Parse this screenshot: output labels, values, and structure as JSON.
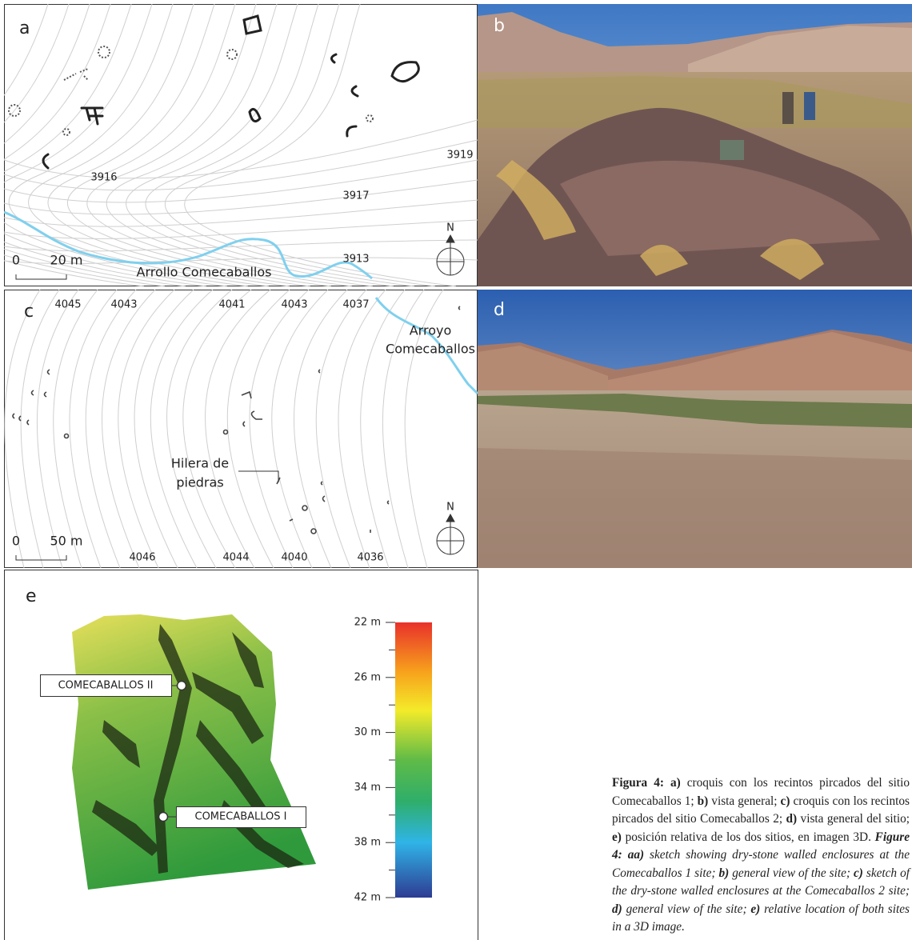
{
  "panels": {
    "a": {
      "label": "a",
      "contours": [
        "3916",
        "3917",
        "3919",
        "3913"
      ],
      "scale": [
        "0",
        "20 m"
      ],
      "river": "Arrollo Comecaballos",
      "north": "N"
    },
    "b": {
      "label": "b"
    },
    "c": {
      "label": "c",
      "contours_top": [
        "4045",
        "4043",
        "4041",
        "4043",
        "4037"
      ],
      "contours_bottom": [
        "4046",
        "4044",
        "4040",
        "4036"
      ],
      "river": [
        "Arroyo",
        "Comecaballos"
      ],
      "feature": [
        "Hilera de",
        "piedras"
      ],
      "scale": [
        "0",
        "50 m"
      ],
      "north": "N"
    },
    "d": {
      "label": "d"
    },
    "e": {
      "label": "e",
      "sites": [
        "COMECABALLOS II",
        "COMECABALLOS I"
      ],
      "colorbar": [
        "22 m",
        "26 m",
        "30 m",
        "34 m",
        "38 m",
        "42 m"
      ]
    }
  },
  "caption": {
    "runs": [
      {
        "text": "Figura 4: a)",
        "style": "bold"
      },
      {
        "text": " croquis con los recintos pircados del sitio Comecaballos 1; ",
        "style": "normal"
      },
      {
        "text": "b)",
        "style": "bold"
      },
      {
        "text": " vista general; ",
        "style": "normal"
      },
      {
        "text": "c)",
        "style": "bold"
      },
      {
        "text": " croquis con los recintos pircados del sitio Comecaballos 2; ",
        "style": "normal"
      },
      {
        "text": "d)",
        "style": "bold"
      },
      {
        "text": " vista general del sitio; ",
        "style": "normal"
      },
      {
        "text": "e)",
        "style": "bold"
      },
      {
        "text": " posición relativa de los dos sitios, en imagen 3D. ",
        "style": "normal"
      },
      {
        "text": "Figure 4: aa)",
        "style": "bold-italic"
      },
      {
        "text": " sketch showing dry-stone walled enclosures at the Comecaballos 1 site; ",
        "style": "italic"
      },
      {
        "text": "b)",
        "style": "bold-italic"
      },
      {
        "text": " general view of the site; ",
        "style": "italic"
      },
      {
        "text": "c)",
        "style": "bold-italic"
      },
      {
        "text": " sketch of the dry-stone walled enclosures at the Comecaballos 2 site; ",
        "style": "italic"
      },
      {
        "text": "d)",
        "style": "bold-italic"
      },
      {
        "text": " general view of the site; ",
        "style": "italic"
      },
      {
        "text": "e)",
        "style": "bold-italic"
      },
      {
        "text": " relative location of both sites in a 3D image.",
        "style": "italic"
      }
    ]
  }
}
